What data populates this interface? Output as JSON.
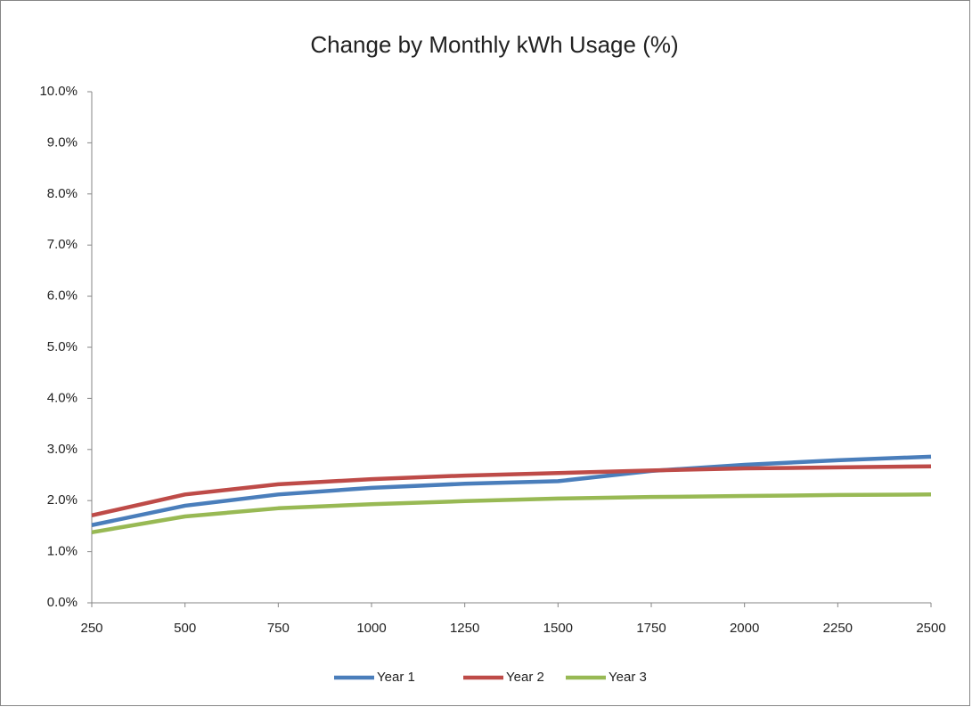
{
  "chart_data": {
    "type": "line",
    "title": "Change by Monthly kWh Usage (%)",
    "x": [
      250,
      500,
      750,
      1000,
      1250,
      1500,
      1750,
      2000,
      2250,
      2500
    ],
    "series": [
      {
        "name": "Year 1",
        "color": "#4a7ebb",
        "values": [
          1.52,
          1.9,
          2.12,
          2.25,
          2.33,
          2.38,
          2.58,
          2.7,
          2.79,
          2.86
        ]
      },
      {
        "name": "Year 2",
        "color": "#be4b48",
        "values": [
          1.71,
          2.12,
          2.32,
          2.42,
          2.49,
          2.54,
          2.59,
          2.63,
          2.65,
          2.67
        ]
      },
      {
        "name": "Year 3",
        "color": "#98b954",
        "values": [
          1.38,
          1.69,
          1.85,
          1.93,
          1.99,
          2.04,
          2.07,
          2.09,
          2.11,
          2.12
        ]
      }
    ],
    "xlim": [
      250,
      2500
    ],
    "xticks": [
      250,
      500,
      750,
      1000,
      1250,
      1500,
      1750,
      2000,
      2250,
      2500
    ],
    "ylim": [
      0,
      10
    ],
    "yticks": [
      {
        "value": 0,
        "label": "0.0%"
      },
      {
        "value": 1,
        "label": "1.0%"
      },
      {
        "value": 2,
        "label": "2.0%"
      },
      {
        "value": 3,
        "label": "3.0%"
      },
      {
        "value": 4,
        "label": "4.0%"
      },
      {
        "value": 5,
        "label": "5.0%"
      },
      {
        "value": 6,
        "label": "6.0%"
      },
      {
        "value": 7,
        "label": "7.0%"
      },
      {
        "value": 8,
        "label": "8.0%"
      },
      {
        "value": 9,
        "label": "9.0%"
      },
      {
        "value": 10,
        "label": "10.0%"
      }
    ],
    "grid": false,
    "legend": "bottom"
  }
}
